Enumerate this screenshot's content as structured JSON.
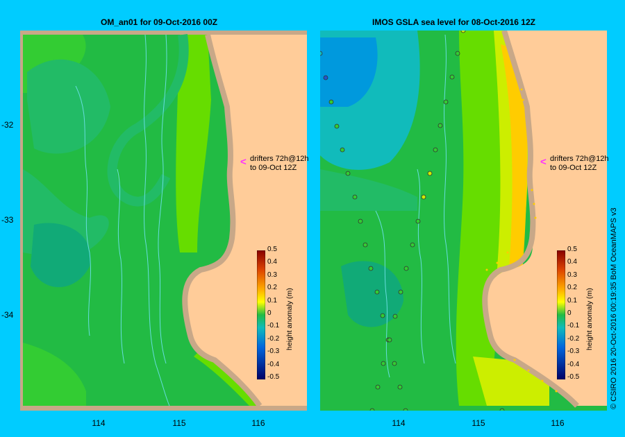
{
  "left_panel": {
    "title": "OM_an01  for 09-Oct-2016 00Z"
  },
  "right_panel": {
    "title": "IMOS GSLA sea level  for 08-Oct-2016 12Z"
  },
  "axes": {
    "y_ticks": [
      "-32",
      "-33",
      "-34"
    ],
    "x_ticks": [
      "114",
      "115",
      "116"
    ]
  },
  "annotation": {
    "line1": "drifters 72h@12h",
    "line2": "to 09-Oct 12Z"
  },
  "colorbar": {
    "label": "height anomaly (m)",
    "ticks": [
      "0.5",
      "0.4",
      "0.3",
      "0.2",
      "0.1",
      "0",
      "-0.1",
      "-0.2",
      "-0.3",
      "-0.4",
      "-0.5"
    ]
  },
  "credit": "© CSIRO 2016   20-Oct-2016 00:19:35 BoM OceanMAPS v3",
  "colors": {
    "background": "#00ccff",
    "land": "#ffcc99",
    "coast": "#c8a888",
    "arrow": "#ff33ff"
  }
}
